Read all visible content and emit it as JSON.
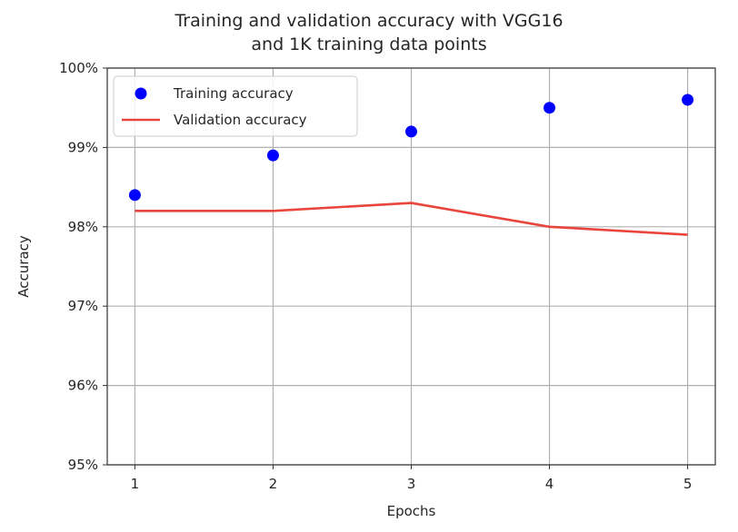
{
  "chart_data": {
    "type": "line",
    "title_lines": [
      "Training and validation accuracy with VGG16",
      "and 1K training data points"
    ],
    "xlabel": "Epochs",
    "ylabel": "Accuracy",
    "x": [
      1,
      2,
      3,
      4,
      5
    ],
    "xticks": [
      "1",
      "2",
      "3",
      "4",
      "5"
    ],
    "ylim": [
      0.95,
      1.0
    ],
    "yticks": [
      0.95,
      0.96,
      0.97,
      0.98,
      0.99,
      1.0
    ],
    "ytick_labels": [
      "95%",
      "96%",
      "97%",
      "98%",
      "99%",
      "100%"
    ],
    "grid": true,
    "legend_position": "upper left",
    "series": [
      {
        "name": "Training accuracy",
        "style": "markers",
        "color": "#0000ff",
        "values": [
          0.984,
          0.989,
          0.992,
          0.995,
          0.996
        ]
      },
      {
        "name": "Validation accuracy",
        "style": "line",
        "color": "#e8453c",
        "values": [
          0.982,
          0.982,
          0.983,
          0.98,
          0.979
        ]
      }
    ]
  }
}
